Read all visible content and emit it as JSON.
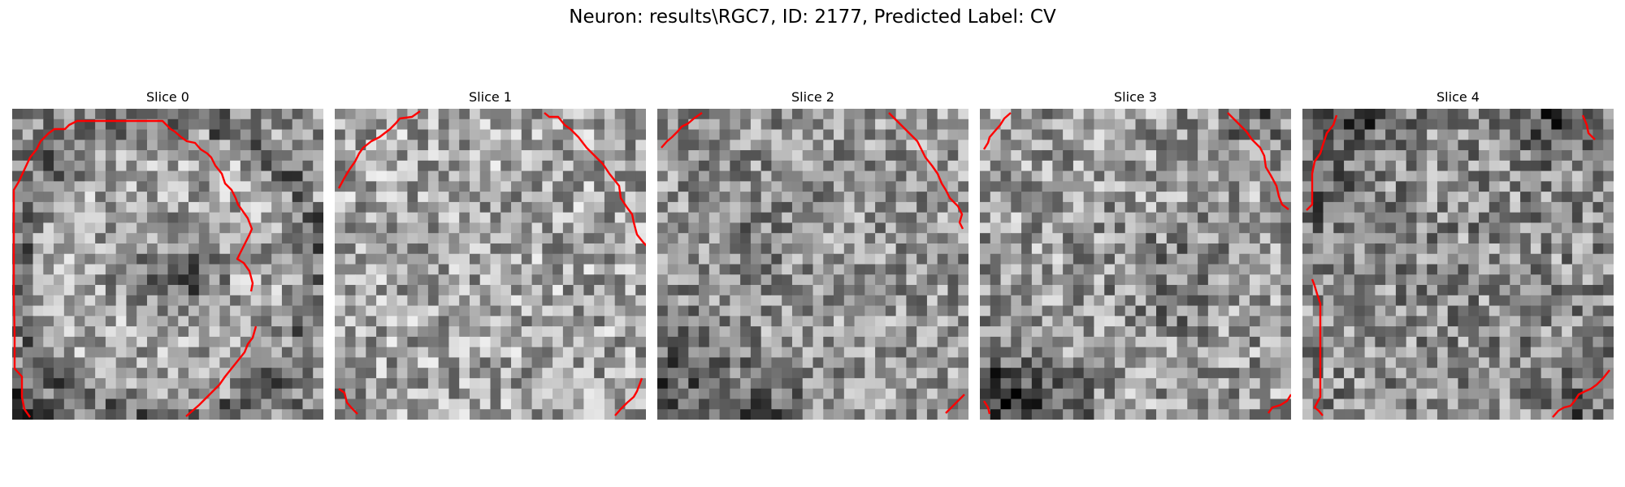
{
  "figure": {
    "title": "Neuron: results\\RGC7, ID: 2177, Predicted Label: CV"
  },
  "panels": [
    {
      "title": "Slice 0"
    },
    {
      "title": "Slice 1"
    },
    {
      "title": "Slice 2"
    },
    {
      "title": "Slice 3"
    },
    {
      "title": "Slice 4"
    }
  ],
  "colors": {
    "contour": "#ff0000",
    "colormap": "gray"
  }
}
